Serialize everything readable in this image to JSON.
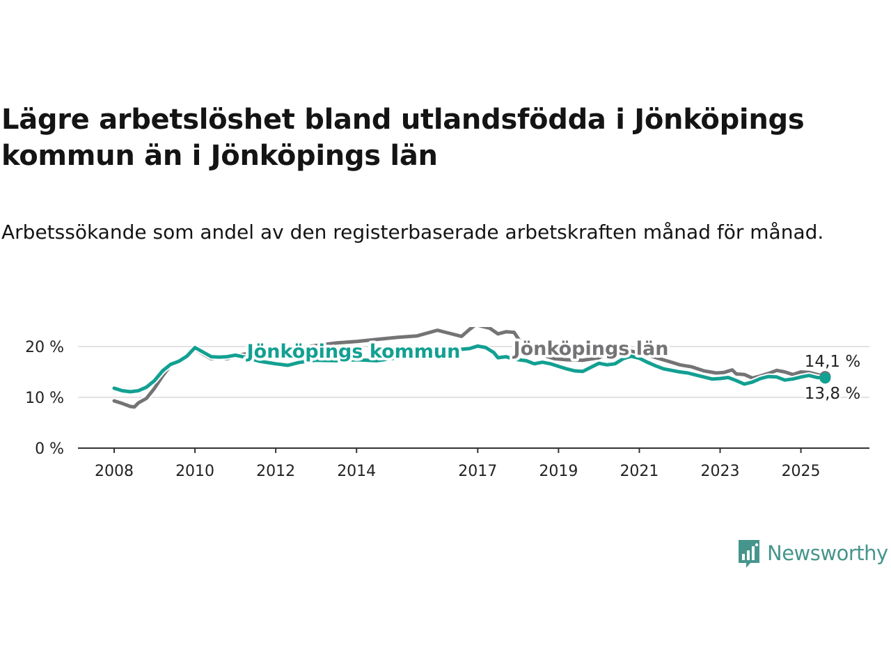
{
  "title": "Lägre arbetslöshet bland utlandsfödda i Jönköpings kommun än i Jönköpings län",
  "subtitle": "Arbetssökande som andel av den registerbaserade arbetskraften månad för månad.",
  "brand": {
    "name": "Newsworthy",
    "color": "#46958c",
    "icon": "bar-chart-speech-bubble-icon"
  },
  "chart_data": {
    "type": "line",
    "ylim": [
      0,
      23
    ],
    "xlim": [
      2008,
      2025.8
    ],
    "yticks": [
      {
        "value": 0,
        "label": "0 %"
      },
      {
        "value": 10,
        "label": "10 %"
      },
      {
        "value": 20,
        "label": "20 %"
      }
    ],
    "xticks": [
      {
        "value": 2008,
        "label": "2008"
      },
      {
        "value": 2010,
        "label": "2010"
      },
      {
        "value": 2012,
        "label": "2012"
      },
      {
        "value": 2014,
        "label": "2014"
      },
      {
        "value": 2017,
        "label": "2017"
      },
      {
        "value": 2019,
        "label": "2019"
      },
      {
        "value": 2021,
        "label": "2021"
      },
      {
        "value": 2023,
        "label": "2023"
      },
      {
        "value": 2025,
        "label": "2025"
      }
    ],
    "grid": "horizontal",
    "legend": "inline labels",
    "series": [
      {
        "name": "Jönköpings län",
        "color": "#747476",
        "end_label": "14,1 %",
        "points": [
          [
            2008.0,
            9.3
          ],
          [
            2008.2,
            8.8
          ],
          [
            2008.4,
            8.2
          ],
          [
            2008.5,
            8.1
          ],
          [
            2008.6,
            8.9
          ],
          [
            2008.8,
            9.8
          ],
          [
            2009.0,
            11.8
          ],
          [
            2009.2,
            14.2
          ],
          [
            2009.4,
            16.3
          ],
          [
            2009.6,
            17.2
          ],
          [
            2009.8,
            18.3
          ],
          [
            2010.0,
            19.5
          ],
          [
            2010.2,
            18.5
          ],
          [
            2010.4,
            17.6
          ],
          [
            2010.6,
            17.8
          ],
          [
            2010.8,
            17.6
          ],
          [
            2011.0,
            18.2
          ],
          [
            2011.3,
            18.6
          ],
          [
            2011.6,
            18.9
          ],
          [
            2012.0,
            19.1
          ],
          [
            2012.5,
            19.6
          ],
          [
            2013.0,
            20.2
          ],
          [
            2013.5,
            20.7
          ],
          [
            2014.0,
            21.0
          ],
          [
            2014.5,
            21.4
          ],
          [
            2015.0,
            21.8
          ],
          [
            2015.5,
            22.1
          ],
          [
            2016.0,
            23.2
          ],
          [
            2016.3,
            22.6
          ],
          [
            2016.6,
            22.0
          ],
          [
            2016.8,
            23.4
          ],
          [
            2016.95,
            24.3
          ],
          [
            2017.1,
            24.0
          ],
          [
            2017.3,
            23.6
          ],
          [
            2017.5,
            22.5
          ],
          [
            2017.7,
            22.9
          ],
          [
            2017.9,
            22.8
          ],
          [
            2018.1,
            20.4
          ],
          [
            2018.3,
            19.1
          ],
          [
            2018.6,
            18.3
          ],
          [
            2018.9,
            17.6
          ],
          [
            2019.2,
            17.4
          ],
          [
            2019.6,
            17.3
          ],
          [
            2020.0,
            17.8
          ],
          [
            2020.3,
            19.0
          ],
          [
            2020.6,
            19.5
          ],
          [
            2020.9,
            18.9
          ],
          [
            2021.2,
            18.3
          ],
          [
            2021.5,
            17.6
          ],
          [
            2021.8,
            16.9
          ],
          [
            2022.0,
            16.4
          ],
          [
            2022.3,
            16.0
          ],
          [
            2022.6,
            15.2
          ],
          [
            2022.9,
            14.8
          ],
          [
            2023.1,
            14.9
          ],
          [
            2023.3,
            15.4
          ],
          [
            2023.4,
            14.6
          ],
          [
            2023.6,
            14.5
          ],
          [
            2023.8,
            13.8
          ],
          [
            2024.0,
            14.2
          ],
          [
            2024.2,
            14.7
          ],
          [
            2024.4,
            15.3
          ],
          [
            2024.6,
            15.0
          ],
          [
            2024.8,
            14.5
          ],
          [
            2025.0,
            15.0
          ],
          [
            2025.2,
            14.9
          ],
          [
            2025.4,
            14.5
          ],
          [
            2025.6,
            14.1
          ]
        ]
      },
      {
        "name": "Jönköpings kommun",
        "color": "#12a092",
        "end_label": "13,8 %",
        "points": [
          [
            2008.0,
            11.8
          ],
          [
            2008.2,
            11.3
          ],
          [
            2008.4,
            11.1
          ],
          [
            2008.6,
            11.3
          ],
          [
            2008.8,
            12.0
          ],
          [
            2009.0,
            13.3
          ],
          [
            2009.2,
            15.2
          ],
          [
            2009.4,
            16.5
          ],
          [
            2009.6,
            17.1
          ],
          [
            2009.8,
            18.1
          ],
          [
            2010.0,
            19.8
          ],
          [
            2010.2,
            18.9
          ],
          [
            2010.4,
            18.0
          ],
          [
            2010.6,
            17.9
          ],
          [
            2010.8,
            18.0
          ],
          [
            2011.0,
            18.3
          ],
          [
            2011.3,
            17.8
          ],
          [
            2011.6,
            17.1
          ],
          [
            2012.0,
            16.6
          ],
          [
            2012.3,
            16.3
          ],
          [
            2012.6,
            16.9
          ],
          [
            2013.0,
            17.3
          ],
          [
            2013.5,
            17.2
          ],
          [
            2014.0,
            17.4
          ],
          [
            2014.5,
            17.2
          ],
          [
            2015.0,
            17.8
          ],
          [
            2015.5,
            18.4
          ],
          [
            2016.0,
            19.0
          ],
          [
            2016.5,
            19.4
          ],
          [
            2016.8,
            19.6
          ],
          [
            2017.0,
            20.1
          ],
          [
            2017.2,
            19.8
          ],
          [
            2017.4,
            18.8
          ],
          [
            2017.5,
            17.8
          ],
          [
            2017.7,
            18.0
          ],
          [
            2017.9,
            17.5
          ],
          [
            2018.2,
            17.2
          ],
          [
            2018.4,
            16.6
          ],
          [
            2018.6,
            16.9
          ],
          [
            2018.8,
            16.6
          ],
          [
            2019.0,
            16.1
          ],
          [
            2019.2,
            15.6
          ],
          [
            2019.4,
            15.2
          ],
          [
            2019.6,
            15.1
          ],
          [
            2019.8,
            15.9
          ],
          [
            2020.0,
            16.7
          ],
          [
            2020.2,
            16.4
          ],
          [
            2020.4,
            16.6
          ],
          [
            2020.6,
            17.6
          ],
          [
            2020.8,
            18.1
          ],
          [
            2021.0,
            17.7
          ],
          [
            2021.2,
            16.9
          ],
          [
            2021.4,
            16.2
          ],
          [
            2021.6,
            15.6
          ],
          [
            2021.8,
            15.3
          ],
          [
            2022.0,
            15.0
          ],
          [
            2022.2,
            14.8
          ],
          [
            2022.4,
            14.4
          ],
          [
            2022.6,
            14.0
          ],
          [
            2022.8,
            13.6
          ],
          [
            2023.0,
            13.7
          ],
          [
            2023.2,
            13.9
          ],
          [
            2023.4,
            13.3
          ],
          [
            2023.6,
            12.6
          ],
          [
            2023.8,
            13.0
          ],
          [
            2024.0,
            13.7
          ],
          [
            2024.2,
            14.1
          ],
          [
            2024.4,
            14.0
          ],
          [
            2024.6,
            13.4
          ],
          [
            2024.8,
            13.6
          ],
          [
            2025.0,
            14.0
          ],
          [
            2025.2,
            14.3
          ],
          [
            2025.4,
            13.9
          ],
          [
            2025.6,
            13.8
          ]
        ]
      }
    ]
  }
}
